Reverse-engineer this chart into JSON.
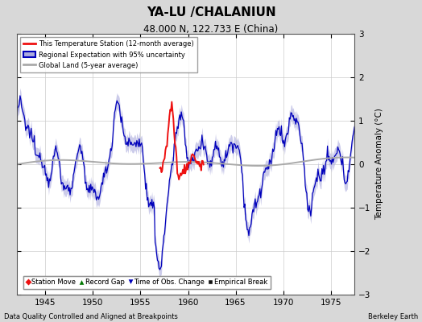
{
  "title": "YA-LU /CHALANIUN",
  "subtitle": "48.000 N, 122.733 E (China)",
  "xlabel_bottom": "Data Quality Controlled and Aligned at Breakpoints",
  "xlabel_right": "Berkeley Earth",
  "ylabel": "Temperature Anomaly (°C)",
  "xlim": [
    1942.0,
    1977.5
  ],
  "ylim": [
    -3,
    3
  ],
  "yticks": [
    -3,
    -2,
    -1,
    0,
    1,
    2,
    3
  ],
  "xticks": [
    1945,
    1950,
    1955,
    1960,
    1965,
    1970,
    1975
  ],
  "background_color": "#d8d8d8",
  "plot_bg_color": "#ffffff",
  "grid_color": "#cccccc",
  "red_line_color": "#ee1111",
  "blue_line_color": "#0000bb",
  "blue_fill_color": "#aaaadd",
  "gray_line_color": "#aaaaaa",
  "legend_items": [
    {
      "label": "This Temperature Station (12-month average)",
      "color": "#ee1111"
    },
    {
      "label": "Regional Expectation with 95% uncertainty",
      "color": "#0000bb"
    },
    {
      "label": "Global Land (5-year average)",
      "color": "#aaaaaa"
    }
  ],
  "marker_legend": [
    {
      "label": "Station Move",
      "color": "#ee1111",
      "marker": "D"
    },
    {
      "label": "Record Gap",
      "color": "#007700",
      "marker": "^"
    },
    {
      "label": "Time of Obs. Change",
      "color": "#0000bb",
      "marker": "v"
    },
    {
      "label": "Empirical Break",
      "color": "#111111",
      "marker": "s"
    }
  ]
}
